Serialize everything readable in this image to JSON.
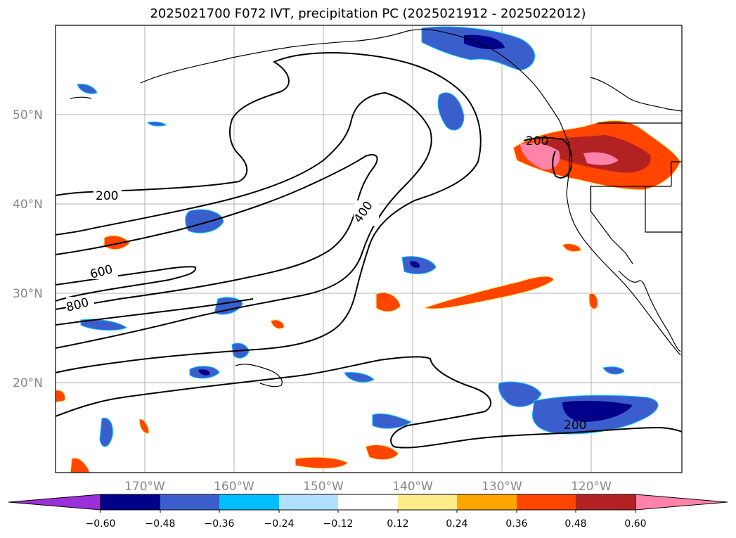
{
  "title": "2025021700 F072 IVT, precipitation PC (2025021912 - 2025022012)",
  "lat_labels": [
    "50°N",
    "40°N",
    "30°N",
    "20°N"
  ],
  "lon_labels": [
    "170°W",
    "160°W",
    "150°W",
    "140°W",
    "130°W",
    "120°W"
  ],
  "contour_labels": [
    "200",
    "400",
    "600",
    "800",
    "200",
    "200"
  ],
  "colorbar": {
    "ticks": [
      "−0.60",
      "−0.48",
      "−0.36",
      "−0.24",
      "−0.12",
      "0.12",
      "0.24",
      "0.36",
      "0.48",
      "0.60"
    ],
    "colors": [
      "#9b30d9",
      "#00008b",
      "#3a5fcd",
      "#00bfff",
      "#b0e2ff",
      "#ffffff",
      "#ffec8b",
      "#ffa500",
      "#ff4500",
      "#b22222",
      "#ff82ab"
    ]
  },
  "colors": {
    "grid": "#b0b0b0",
    "coast": "#000000",
    "label_gray": "#888888"
  }
}
